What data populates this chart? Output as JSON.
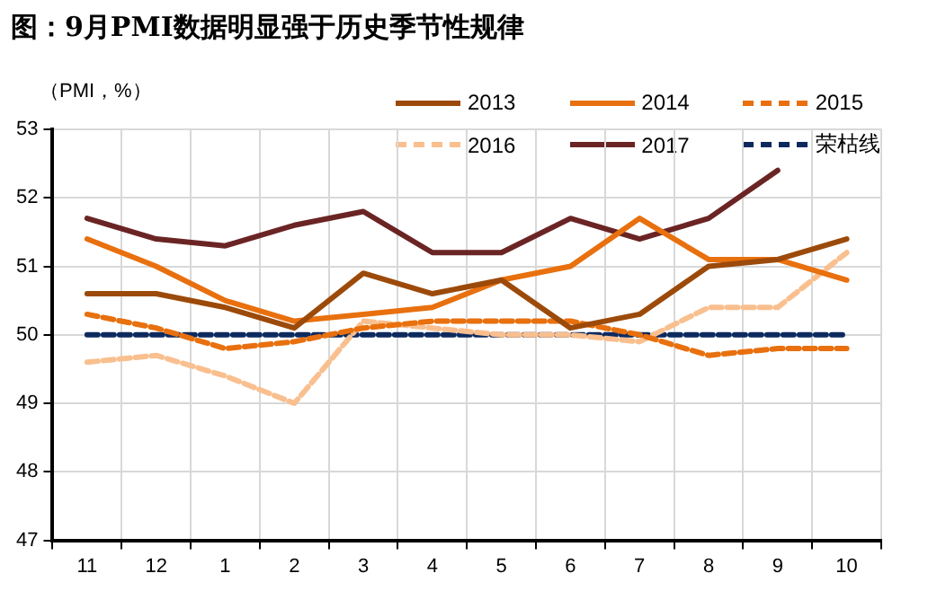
{
  "chart_data": {
    "type": "line",
    "title": "图：9月PMI数据明显强于历史季节性规律",
    "ylabel": "（PMI，%）",
    "categories": [
      "11",
      "12",
      "1",
      "2",
      "3",
      "4",
      "5",
      "6",
      "7",
      "8",
      "9",
      "10"
    ],
    "ylim": [
      47,
      53
    ],
    "yticks": [
      47,
      48,
      49,
      50,
      51,
      52,
      53
    ],
    "grid": true,
    "legend": "top right",
    "marker": "none",
    "series": [
      {
        "name": "2013",
        "color": "#9c4a0a",
        "line_style": "solid",
        "values": [
          50.6,
          50.6,
          50.4,
          50.1,
          50.9,
          50.6,
          50.8,
          50.1,
          50.3,
          51.0,
          51.1,
          51.4
        ]
      },
      {
        "name": "2014",
        "color": "#e8700e",
        "line_style": "solid",
        "values": [
          51.4,
          51.0,
          50.5,
          50.2,
          50.3,
          50.4,
          50.8,
          51.0,
          51.7,
          51.1,
          51.1,
          50.8
        ]
      },
      {
        "name": "2015",
        "color": "#e8700e",
        "line_style": "dashed",
        "values": [
          50.3,
          50.1,
          49.8,
          49.9,
          50.1,
          50.2,
          50.2,
          50.2,
          50.0,
          49.7,
          49.8,
          49.8
        ]
      },
      {
        "name": "2016",
        "color": "#f9bf8f",
        "line_style": "dashed",
        "values": [
          49.6,
          49.7,
          49.4,
          49.0,
          50.2,
          50.1,
          50.0,
          50.0,
          49.9,
          50.4,
          50.4,
          51.2
        ]
      },
      {
        "name": "2017",
        "color": "#6b2424",
        "line_style": "solid",
        "values": [
          51.7,
          51.4,
          51.3,
          51.6,
          51.8,
          51.2,
          51.2,
          51.7,
          51.4,
          51.7,
          52.4,
          null
        ]
      },
      {
        "name": "荣枯线",
        "color": "#0d2a5f",
        "line_style": "dashed",
        "values": [
          50,
          50,
          50,
          50,
          50,
          50,
          50,
          50,
          50,
          50,
          50,
          50
        ]
      }
    ]
  }
}
